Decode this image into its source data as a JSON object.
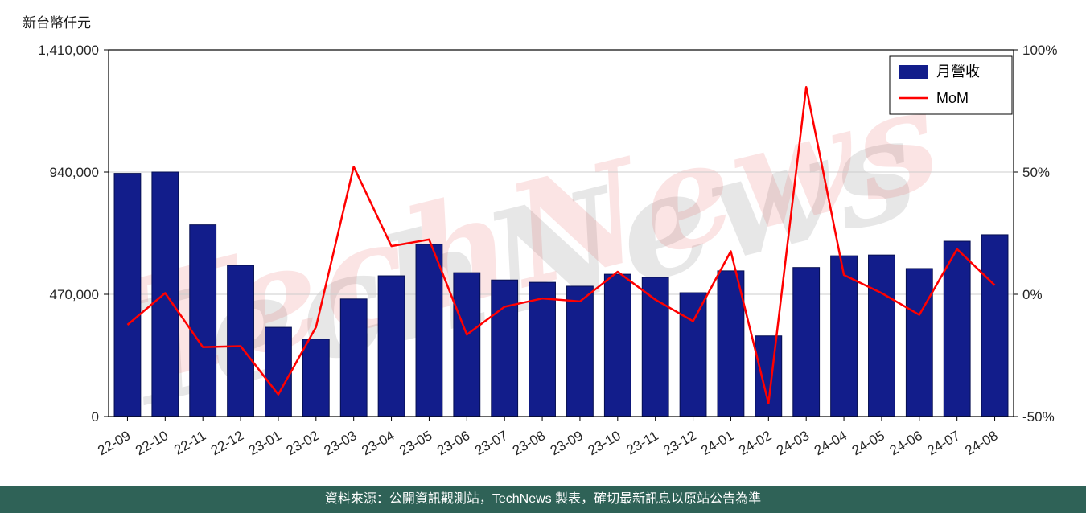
{
  "watermark": "TechNews",
  "footer": {
    "text": "資料來源：公開資訊觀測站，TechNews 製表，確切最新訊息以原站公告為準"
  },
  "legend": {
    "revenue": "月營收",
    "mom": "MoM"
  },
  "colors": {
    "bar": "#121d8b",
    "bar_edge": "#060f52",
    "line": "#ff0000",
    "grid": "#cccccc",
    "axis": "#000000",
    "tick_text": "#262626",
    "footer_bg": "#2f6257",
    "watermark_red": "rgba(225,45,45,0.13)",
    "watermark_gray": "rgba(120,120,120,0.18)"
  },
  "chart_data": {
    "type": "bar",
    "subtype": "bar+line dual axis",
    "title": "",
    "categories": [
      "22-09",
      "22-10",
      "22-11",
      "22-12",
      "23-01",
      "23-02",
      "23-03",
      "23-04",
      "23-05",
      "23-06",
      "23-07",
      "23-08",
      "23-09",
      "23-10",
      "23-11",
      "23-12",
      "24-01",
      "24-02",
      "24-03",
      "24-04",
      "24-05",
      "24-06",
      "24-07",
      "24-08"
    ],
    "series": [
      {
        "name": "月營收",
        "type": "bar",
        "axis": "left",
        "color": "#121d8b",
        "values": [
          935000,
          940000,
          737000,
          581000,
          343000,
          297000,
          452000,
          541000,
          662000,
          553000,
          525000,
          516000,
          501000,
          547000,
          535000,
          476000,
          560000,
          310000,
          573000,
          618000,
          621000,
          569000,
          674000,
          699000
        ]
      },
      {
        "name": "MoM",
        "type": "line",
        "axis": "right",
        "color": "#ff0000",
        "values": [
          -12.5,
          0.5,
          -21.6,
          -21.2,
          -41.0,
          -13.4,
          52.2,
          19.7,
          22.4,
          -16.5,
          -5.1,
          -1.7,
          -2.9,
          9.2,
          -2.2,
          -11.0,
          17.6,
          -44.6,
          84.8,
          7.9,
          0.5,
          -8.4,
          18.5,
          3.7
        ]
      }
    ],
    "left_axis": {
      "label": "新台幣仟元",
      "range": [
        0,
        1410000
      ],
      "ticks": [
        0,
        470000,
        940000,
        1410000
      ],
      "tick_labels": [
        "0",
        "470,000",
        "940,000",
        "1,410,000"
      ]
    },
    "right_axis": {
      "label": "",
      "range": [
        -50,
        100
      ],
      "ticks": [
        -50,
        0,
        50,
        100
      ],
      "tick_labels": [
        "-50%",
        "0%",
        "50%",
        "100%"
      ]
    },
    "grid": true,
    "legend_position": "top-right"
  }
}
